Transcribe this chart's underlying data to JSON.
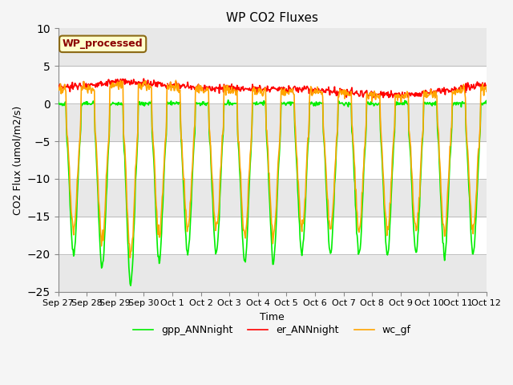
{
  "title": "WP CO2 Fluxes",
  "xlabel": "Time",
  "ylabel_text": "CO2 Flux (umol/m2/s)",
  "ylim": [
    -25,
    10
  ],
  "yticks": [
    -25,
    -20,
    -15,
    -10,
    -5,
    0,
    5,
    10
  ],
  "plot_bg": "#ffffff",
  "fig_bg": "#f5f5f5",
  "gray_band_color": "#e8e8e8",
  "legend_label": "WP_processed",
  "legend_text_color": "#8b0000",
  "legend_bg": "#ffffcc",
  "legend_edge_color": "#8b6914",
  "series": {
    "gpp": {
      "color": "#00ee00",
      "label": "gpp_ANNnight",
      "lw": 1.2
    },
    "er": {
      "color": "#ff0000",
      "label": "er_ANNnight",
      "lw": 1.2
    },
    "wc": {
      "color": "#ffa500",
      "label": "wc_gf",
      "lw": 1.2
    }
  },
  "figsize": [
    6.4,
    4.8
  ],
  "dpi": 100
}
